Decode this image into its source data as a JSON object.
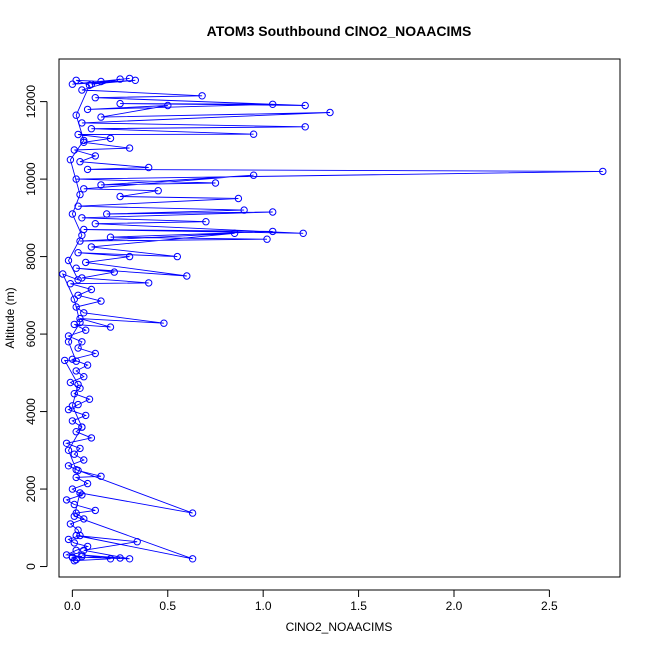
{
  "chart_data": {
    "type": "line",
    "title": "ATOM3 Southbound ClNO2_NOAACIMS",
    "xlabel": "ClNO2_NOAACIMS",
    "ylabel": "Altitude (m)",
    "xlim": [
      -0.07,
      2.87
    ],
    "ylim": [
      -270,
      13100
    ],
    "xticks": [
      0,
      0.5,
      1,
      1.5,
      2,
      2.5
    ],
    "xtick_labels": [
      "0.0",
      "0.5",
      "1.0",
      "1.5",
      "2.0",
      "2.5"
    ],
    "yticks": [
      0,
      2000,
      4000,
      6000,
      8000,
      10000,
      12000
    ],
    "ytick_labels": [
      "0",
      "2000",
      "4000",
      "6000",
      "8000",
      "10000",
      "12000"
    ],
    "markers": "open-circle",
    "color": "#0000ff",
    "grid": false,
    "series": [
      {
        "points": [
          [
            0.02,
            180
          ],
          [
            0.0,
            230
          ],
          [
            0.05,
            260
          ],
          [
            -0.03,
            300
          ],
          [
            0.02,
            420
          ],
          [
            0.08,
            520
          ],
          [
            0.01,
            610
          ],
          [
            -0.02,
            700
          ],
          [
            0.04,
            800
          ],
          [
            0.03,
            940
          ],
          [
            -0.01,
            1100
          ],
          [
            0.06,
            1230
          ],
          [
            0.02,
            1380
          ],
          [
            0.12,
            1450
          ],
          [
            0.01,
            1600
          ],
          [
            -0.03,
            1720
          ],
          [
            0.05,
            1850
          ],
          [
            0.0,
            2000
          ],
          [
            0.08,
            2140
          ],
          [
            0.02,
            2300
          ],
          [
            0.15,
            2330
          ],
          [
            0.03,
            2480
          ],
          [
            -0.02,
            2600
          ],
          [
            0.06,
            2750
          ],
          [
            0.01,
            2900
          ],
          [
            0.04,
            3050
          ],
          [
            -0.03,
            3180
          ],
          [
            0.1,
            3320
          ],
          [
            0.02,
            3480
          ],
          [
            0.05,
            3600
          ],
          [
            0.0,
            3760
          ],
          [
            0.07,
            3900
          ],
          [
            -0.02,
            4050
          ],
          [
            0.03,
            4180
          ],
          [
            0.09,
            4320
          ],
          [
            0.01,
            4460
          ],
          [
            0.04,
            4600
          ],
          [
            -0.01,
            4750
          ],
          [
            0.06,
            4900
          ],
          [
            0.02,
            5050
          ],
          [
            0.08,
            5200
          ],
          [
            0.0,
            5350
          ],
          [
            0.12,
            5500
          ],
          [
            0.03,
            5640
          ],
          [
            0.05,
            5800
          ],
          [
            -0.02,
            5950
          ],
          [
            0.07,
            6100
          ],
          [
            0.01,
            6250
          ],
          [
            0.2,
            6180
          ],
          [
            0.04,
            6400
          ],
          [
            0.48,
            6280
          ],
          [
            0.06,
            6550
          ],
          [
            0.02,
            6700
          ],
          [
            0.15,
            6850
          ],
          [
            0.03,
            7000
          ],
          [
            0.1,
            7150
          ],
          [
            -0.01,
            7300
          ],
          [
            0.4,
            7320
          ],
          [
            0.05,
            7450
          ],
          [
            0.22,
            7600
          ],
          [
            0.02,
            7700
          ],
          [
            0.6,
            7500
          ],
          [
            0.07,
            7850
          ],
          [
            0.3,
            8000
          ],
          [
            0.03,
            8100
          ],
          [
            0.55,
            8000
          ],
          [
            0.1,
            8250
          ],
          [
            0.85,
            8600
          ],
          [
            0.04,
            8400
          ],
          [
            1.02,
            8450
          ],
          [
            0.2,
            8500
          ],
          [
            1.05,
            8650
          ],
          [
            0.06,
            8700
          ],
          [
            1.21,
            8600
          ],
          [
            0.12,
            8850
          ],
          [
            0.7,
            8900
          ],
          [
            0.05,
            9000
          ],
          [
            1.05,
            9150
          ],
          [
            0.18,
            9100
          ],
          [
            0.9,
            9200
          ],
          [
            0.03,
            9300
          ],
          [
            0.87,
            9500
          ],
          [
            0.25,
            9550
          ],
          [
            0.45,
            9700
          ],
          [
            0.06,
            9750
          ],
          [
            0.95,
            10100
          ],
          [
            0.15,
            9850
          ],
          [
            0.75,
            9900
          ],
          [
            0.02,
            10000
          ],
          [
            2.78,
            10200
          ],
          [
            0.08,
            10250
          ],
          [
            0.4,
            10300
          ],
          [
            0.04,
            10450
          ],
          [
            0.12,
            10600
          ],
          [
            0.01,
            10750
          ],
          [
            0.3,
            10800
          ],
          [
            0.06,
            10950
          ],
          [
            0.2,
            11050
          ],
          [
            0.03,
            11150
          ],
          [
            0.95,
            11160
          ],
          [
            0.1,
            11300
          ],
          [
            1.22,
            11350
          ],
          [
            0.05,
            11450
          ],
          [
            1.35,
            11720
          ],
          [
            0.15,
            11600
          ],
          [
            0.5,
            11900
          ],
          [
            0.08,
            11800
          ],
          [
            1.05,
            11930
          ],
          [
            0.25,
            11950
          ],
          [
            1.22,
            11900
          ],
          [
            0.12,
            12100
          ],
          [
            0.68,
            12150
          ],
          [
            0.05,
            12300
          ],
          [
            0.25,
            12580
          ],
          [
            0.1,
            12450
          ],
          [
            0.33,
            12550
          ],
          [
            0.0,
            12450
          ],
          [
            0.3,
            12600
          ],
          [
            0.15,
            12520
          ],
          [
            0.02,
            12550
          ],
          [
            0.09,
            12420
          ],
          [
            0.02,
            11650
          ],
          [
            0.06,
            11000
          ],
          [
            -0.01,
            10500
          ],
          [
            0.04,
            9600
          ],
          [
            0.0,
            9100
          ],
          [
            0.05,
            8550
          ],
          [
            -0.02,
            7900
          ],
          [
            0.03,
            7400
          ],
          [
            -0.05,
            7550
          ],
          [
            0.01,
            6900
          ],
          [
            0.04,
            6300
          ],
          [
            -0.02,
            5800
          ],
          [
            0.02,
            5300
          ],
          [
            -0.04,
            5320
          ],
          [
            0.03,
            4700
          ],
          [
            0.0,
            4150
          ],
          [
            0.05,
            3600
          ],
          [
            -0.02,
            3000
          ],
          [
            0.02,
            2500
          ],
          [
            0.63,
            1380
          ],
          [
            0.04,
            1900
          ],
          [
            0.01,
            1300
          ],
          [
            0.63,
            200
          ],
          [
            0.02,
            800
          ],
          [
            0.34,
            640
          ],
          [
            0.06,
            420
          ],
          [
            0.3,
            200
          ],
          [
            0.0,
            250
          ],
          [
            0.25,
            220
          ],
          [
            0.05,
            300
          ],
          [
            0.2,
            200
          ],
          [
            0.01,
            150
          ]
        ]
      }
    ]
  }
}
